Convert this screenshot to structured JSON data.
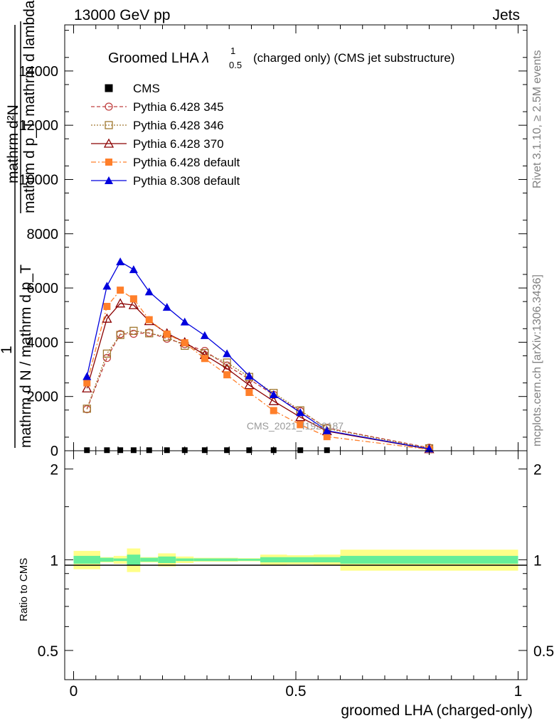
{
  "header": {
    "left": "13000 GeV pp",
    "right": "Jets"
  },
  "side_labels": {
    "rivet": "Rivet 3.1.10, ≥ 2.5M events",
    "mcplots": "mcplots.cern.ch [arXiv:1306.3436]"
  },
  "watermark": "CMS_2021_I1920187",
  "main_plot": {
    "title_prefix": "Groomed LHA ",
    "title_lambda": "λ",
    "title_sup": "1",
    "title_sub": "0.5",
    "title_suffix": "(charged only) (CMS jet substructure)",
    "ylabel_numerator": "mathrm d²N",
    "ylabel_denominator": "mathrm d p_T mathrm d lambda",
    "ylabel_overlay": "1",
    "ylabel_fraction": "mathrm d N / mathrm d p_T",
    "yticks": [
      "0",
      "2000",
      "4000",
      "6000",
      "8000",
      "10000",
      "12000",
      "14000"
    ]
  },
  "ratio_plot": {
    "ylabel": "Ratio to CMS",
    "yticks": [
      "0.5",
      "1",
      "2"
    ],
    "xticks": [
      "0",
      "0.5",
      "1"
    ],
    "xlabel": "groomed LHA (charged-only)"
  },
  "legend": [
    {
      "label": "CMS",
      "color": "#000000",
      "marker": "filled-square",
      "line": "none"
    },
    {
      "label": "Pythia 6.428 345",
      "color": "#c04040",
      "marker": "open-circle",
      "line": "dashed"
    },
    {
      "label": "Pythia 6.428 346",
      "color": "#a07830",
      "marker": "open-square",
      "line": "dotted"
    },
    {
      "label": "Pythia 6.428 370",
      "color": "#8b0000",
      "marker": "open-triangle",
      "line": "solid"
    },
    {
      "label": "Pythia 6.428 default",
      "color": "#ff7f2a",
      "marker": "filled-square",
      "line": "dashdot"
    },
    {
      "label": "Pythia 8.308 default",
      "color": "#0000dd",
      "marker": "filled-triangle",
      "line": "solid"
    }
  ],
  "chart_data": {
    "type": "line",
    "title": "Groomed LHA λ^1_0.5 (charged only) (CMS jet substructure)",
    "xlabel": "groomed LHA (charged-only)",
    "ylabel": "1/(mathrm d N / mathrm d p_T) mathrm d²N/(mathrm d p_T mathrm d lambda)",
    "xlim": [
      -0.02,
      1.02
    ],
    "ylim": [
      0,
      15700
    ],
    "ratio_ylim": [
      0.4,
      2.3
    ],
    "ratio_log": true,
    "legend_position": "top-left",
    "grid": false,
    "x": [
      0.03,
      0.075,
      0.105,
      0.135,
      0.17,
      0.21,
      0.25,
      0.295,
      0.345,
      0.395,
      0.45,
      0.51,
      0.57,
      0.8
    ],
    "series": [
      {
        "name": "CMS",
        "values": [
          20,
          20,
          20,
          20,
          20,
          20,
          20,
          20,
          20,
          20,
          20,
          20,
          20,
          20
        ]
      },
      {
        "name": "Pythia 6.428 345",
        "values": [
          1530,
          3420,
          4300,
          4310,
          4350,
          4130,
          3930,
          3680,
          3140,
          2640,
          2060,
          1460,
          840,
          110
        ]
      },
      {
        "name": "Pythia 6.428 346",
        "values": [
          1550,
          3580,
          4270,
          4420,
          4330,
          4200,
          3870,
          3600,
          3250,
          2720,
          2130,
          1490,
          820,
          90
        ]
      },
      {
        "name": "Pythia 6.428 370",
        "values": [
          2300,
          4870,
          5430,
          5370,
          4780,
          4330,
          4000,
          3530,
          3030,
          2420,
          1830,
          1240,
          720,
          60
        ]
      },
      {
        "name": "Pythia 6.428 default",
        "values": [
          2500,
          5320,
          5920,
          5600,
          4830,
          4300,
          3980,
          3400,
          2800,
          2150,
          1480,
          960,
          520,
          50
        ]
      },
      {
        "name": "Pythia 8.308 default",
        "values": [
          2740,
          6070,
          6970,
          6680,
          5860,
          5290,
          4750,
          4250,
          3580,
          2760,
          2070,
          1410,
          740,
          70
        ]
      }
    ],
    "band_bins": [
      {
        "x0": 0.0,
        "x1": 0.06,
        "inner": 0.03,
        "outer": 0.07
      },
      {
        "x0": 0.06,
        "x1": 0.09,
        "inner": 0.015,
        "outer": 0.02
      },
      {
        "x0": 0.09,
        "x1": 0.12,
        "inner": 0.01,
        "outer": 0.03
      },
      {
        "x0": 0.12,
        "x1": 0.15,
        "inner": 0.04,
        "outer": 0.09
      },
      {
        "x0": 0.15,
        "x1": 0.19,
        "inner": 0.015,
        "outer": 0.02
      },
      {
        "x0": 0.19,
        "x1": 0.23,
        "inner": 0.025,
        "outer": 0.05
      },
      {
        "x0": 0.23,
        "x1": 0.27,
        "inner": 0.01,
        "outer": 0.025
      },
      {
        "x0": 0.27,
        "x1": 0.32,
        "inner": 0.01,
        "outer": 0.015
      },
      {
        "x0": 0.32,
        "x1": 0.37,
        "inner": 0.01,
        "outer": 0.015
      },
      {
        "x0": 0.37,
        "x1": 0.42,
        "inner": 0.008,
        "outer": 0.012
      },
      {
        "x0": 0.42,
        "x1": 0.48,
        "inner": 0.02,
        "outer": 0.04
      },
      {
        "x0": 0.48,
        "x1": 0.54,
        "inner": 0.02,
        "outer": 0.035
      },
      {
        "x0": 0.54,
        "x1": 0.6,
        "inner": 0.02,
        "outer": 0.04
      },
      {
        "x0": 0.6,
        "x1": 1.0,
        "inner": 0.03,
        "outer": 0.08
      }
    ]
  }
}
